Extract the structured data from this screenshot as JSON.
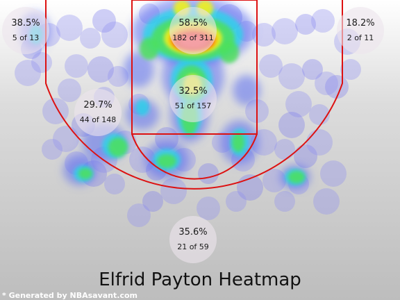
{
  "chart_data": {
    "type": "heatmap",
    "title": "Elfrid Payton Heatmap",
    "credit": "* Generated by NBAsavant.com",
    "colors": {
      "court_lines": "#dd1111",
      "background": "#c4c4c4",
      "zone_bubble": "#ece4ec"
    },
    "zones": [
      {
        "name": "left-corner-three",
        "pct": "38.5%",
        "made_of": "5 of 13",
        "made": 5,
        "attempts": 13
      },
      {
        "name": "restricted-area",
        "pct": "58.5%",
        "made_of": "182 of 311",
        "made": 182,
        "attempts": 311
      },
      {
        "name": "right-corner-three",
        "pct": "18.2%",
        "made_of": "2 of 11",
        "made": 2,
        "attempts": 11
      },
      {
        "name": "left-midrange",
        "pct": "29.7%",
        "made_of": "44 of 148",
        "made": 44,
        "attempts": 148
      },
      {
        "name": "paint",
        "pct": "32.5%",
        "made_of": "51 of 157",
        "made": 51,
        "attempts": 157
      },
      {
        "name": "top-of-key-three",
        "pct": "35.6%",
        "made_of": "21 of 59",
        "made": 21,
        "attempts": 59
      }
    ]
  }
}
